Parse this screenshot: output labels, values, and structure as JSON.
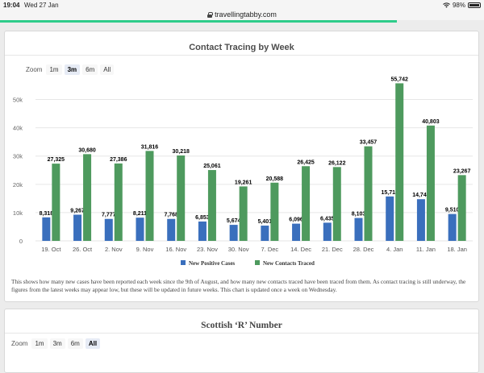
{
  "status": {
    "time": "19:04",
    "date": "Wed 27 Jan",
    "battery": "98%"
  },
  "browser": {
    "url": "travellingtabby.com",
    "progress": 0.82
  },
  "chart_card": {
    "title": "Contact Tracing by Week",
    "zoom_label": "Zoom",
    "zoom_buttons": [
      "1m",
      "3m",
      "6m",
      "All"
    ],
    "zoom_active": "3m",
    "caption": "This shows how many new cases have been reported each week since the 9th of August, and how many new contacts traced have been traced from them. As contact tracing is still underway, the figures from the latest weeks may appear low, but these will be updated in future weeks. This chart is updated once a week on Wednesday."
  },
  "r_card": {
    "title": "Scottish ‘R’ Number",
    "zoom_label": "Zoom",
    "zoom_buttons": [
      "1m",
      "3m",
      "6m",
      "All"
    ],
    "zoom_active": "All"
  },
  "chart_data": {
    "type": "bar",
    "title": "Contact Tracing by Week",
    "categories": [
      "19. Oct",
      "26. Oct",
      "2. Nov",
      "9. Nov",
      "16. Nov",
      "23. Nov",
      "30. Nov",
      "7. Dec",
      "14. Dec",
      "21. Dec",
      "28. Dec",
      "4. Jan",
      "11. Jan",
      "18. Jan"
    ],
    "series": [
      {
        "name": "New Positive Cases",
        "color": "#3a6fbd",
        "values": [
          8318,
          9267,
          7777,
          8211,
          7768,
          6853,
          5674,
          5401,
          6096,
          6435,
          8103,
          15718,
          14749,
          9510
        ],
        "labels": [
          "8,318",
          "9,267",
          "7,777",
          "8,211",
          "7,768",
          "6,853",
          "5,674",
          "5,401",
          "6,096",
          "6,435",
          "8,103",
          "15,718",
          "14,749",
          "9,510"
        ]
      },
      {
        "name": "New Contacts Traced",
        "color": "#4e9a5e",
        "values": [
          27325,
          30680,
          27386,
          31816,
          30218,
          25061,
          19261,
          20588,
          26425,
          26122,
          33457,
          55742,
          40803,
          23267
        ],
        "labels": [
          "27,325",
          "30,680",
          "27,386",
          "31,816",
          "30,218",
          "25,061",
          "19,261",
          "20,588",
          "26,425",
          "26,122",
          "33,457",
          "55,742",
          "40,803",
          "23,267"
        ]
      }
    ],
    "y_ticks": [
      0,
      10000,
      20000,
      30000,
      40000,
      50000
    ],
    "y_tick_labels": [
      "0",
      "10k",
      "20k",
      "30k",
      "40k",
      "50k"
    ],
    "ylim": [
      0,
      57000
    ],
    "grid": true,
    "legend": "bottom-center"
  }
}
